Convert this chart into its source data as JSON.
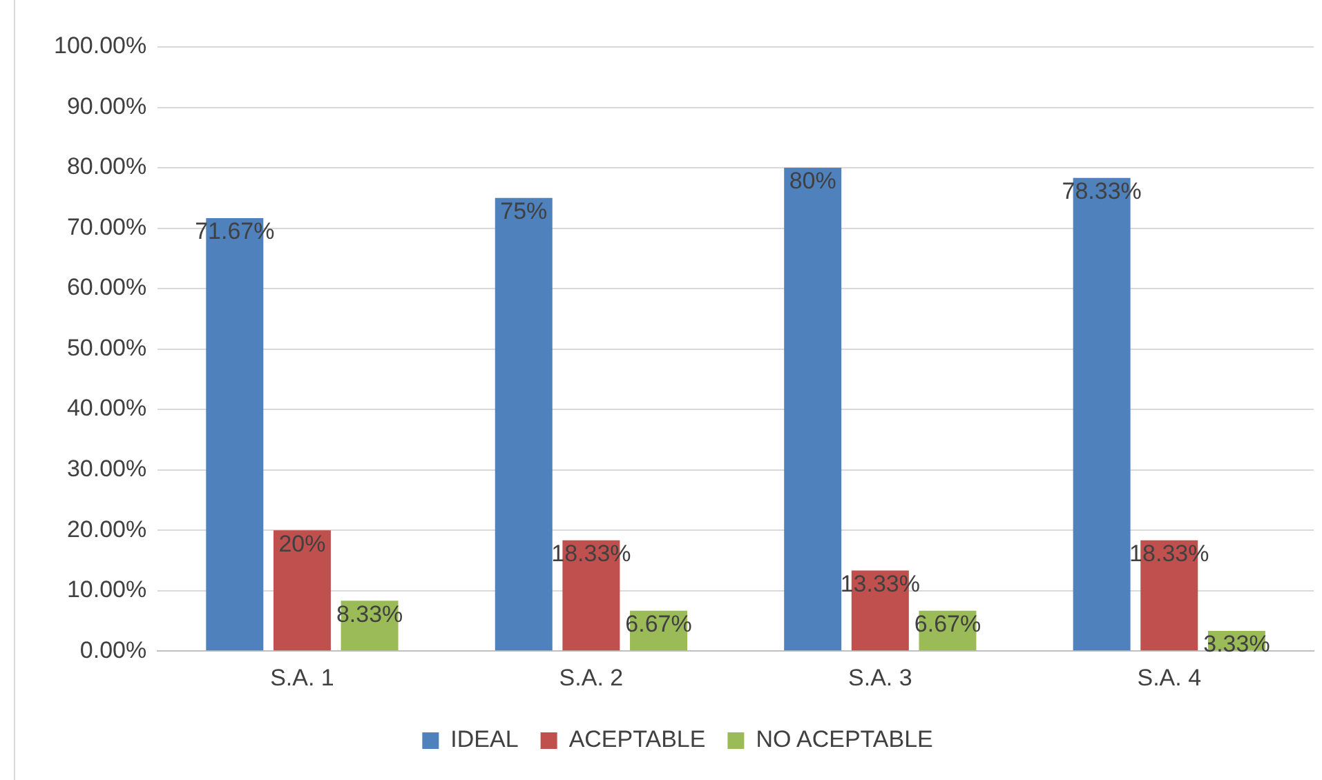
{
  "chart_data": {
    "type": "bar",
    "categories": [
      "S.A. 1",
      "S.A. 2",
      "S.A. 3",
      "S.A. 4"
    ],
    "series": [
      {
        "name": "IDEAL",
        "color": "#4f81bd",
        "values": [
          71.67,
          75,
          80,
          78.33
        ],
        "value_labels": [
          "71.67%",
          "75%",
          "80%",
          "78.33%"
        ]
      },
      {
        "name": "ACEPTABLE",
        "color": "#c0504d",
        "values": [
          20,
          18.33,
          13.33,
          18.33
        ],
        "value_labels": [
          "20%",
          "18.33%",
          "13.33%",
          "18.33%"
        ]
      },
      {
        "name": "NO ACEPTABLE",
        "color": "#9bbb59",
        "values": [
          8.33,
          6.67,
          6.67,
          3.33
        ],
        "value_labels": [
          "8.33%",
          "6.67%",
          "6.67%",
          "3.33%"
        ]
      }
    ],
    "ylim": [
      0,
      100
    ],
    "yticks": [
      {
        "value": 0,
        "label": "0.00%"
      },
      {
        "value": 10,
        "label": "10.00%"
      },
      {
        "value": 20,
        "label": "20.00%"
      },
      {
        "value": 30,
        "label": "30.00%"
      },
      {
        "value": 40,
        "label": "40.00%"
      },
      {
        "value": 50,
        "label": "50.00%"
      },
      {
        "value": 60,
        "label": "60.00%"
      },
      {
        "value": 70,
        "label": "70.00%"
      },
      {
        "value": 80,
        "label": "80.00%"
      },
      {
        "value": 90,
        "label": "90.00%"
      },
      {
        "value": 100,
        "label": "100.00%"
      }
    ],
    "grid": "y",
    "legend": "bottom"
  }
}
